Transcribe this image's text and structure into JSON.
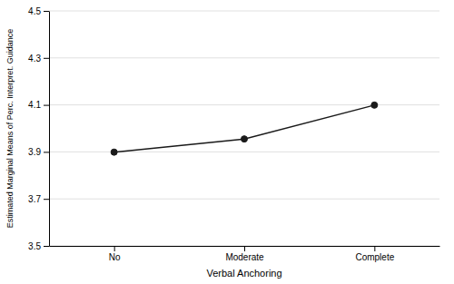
{
  "chart_data": {
    "type": "line",
    "categories": [
      "No",
      "Moderate",
      "Complete"
    ],
    "values": [
      3.899,
      3.955,
      4.099
    ],
    "xlabel": "Verbal Anchoring",
    "ylabel": "Estimated Marginal Means of Perc. Interpret. Guidance",
    "color": "#1a1a1a",
    "marker": "circle",
    "ylim": [
      3.5,
      4.5
    ],
    "yticks": [
      3.5,
      3.7,
      3.9,
      4.1,
      4.3,
      4.5
    ],
    "grid": true
  }
}
